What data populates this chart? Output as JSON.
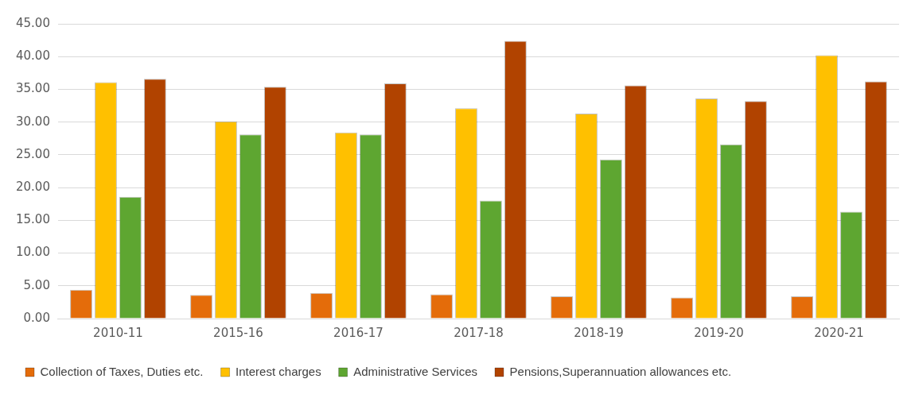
{
  "chart_data": {
    "type": "bar",
    "categories": [
      "2010-11",
      "2015-16",
      "2016-17",
      "2017-18",
      "2018-19",
      "2019-20",
      "2020-21"
    ],
    "series": [
      {
        "name": "Collection of Taxes, Duties etc.",
        "color": "#e46c0a",
        "values": [
          4.4,
          3.6,
          3.9,
          3.7,
          3.4,
          3.2,
          3.4
        ]
      },
      {
        "name": "Interest charges",
        "color": "#ffc000",
        "values": [
          36.1,
          30.1,
          28.4,
          32.1,
          31.3,
          33.6,
          40.2
        ]
      },
      {
        "name": "Administrative Services",
        "color": "#5ea631",
        "values": [
          18.6,
          28.1,
          28.1,
          18.0,
          24.3,
          26.6,
          16.3
        ]
      },
      {
        "name": "Pensions,Superannuation allowances etc.",
        "color": "#b14300",
        "values": [
          36.6,
          35.4,
          35.9,
          42.4,
          35.6,
          33.2,
          36.2
        ]
      }
    ],
    "ylim": [
      0,
      45
    ],
    "yticks": [
      {
        "value": 0,
        "label": "0.00"
      },
      {
        "value": 5,
        "label": "5.00"
      },
      {
        "value": 10,
        "label": "10.00"
      },
      {
        "value": 15,
        "label": "15.00"
      },
      {
        "value": 20,
        "label": "20.00"
      },
      {
        "value": 25,
        "label": "25.00"
      },
      {
        "value": 30,
        "label": "30.00"
      },
      {
        "value": 35,
        "label": "35.00"
      },
      {
        "value": 40,
        "label": "40.00"
      },
      {
        "value": 45,
        "label": "45.00"
      }
    ],
    "grid": "y",
    "legend": "bottom"
  }
}
